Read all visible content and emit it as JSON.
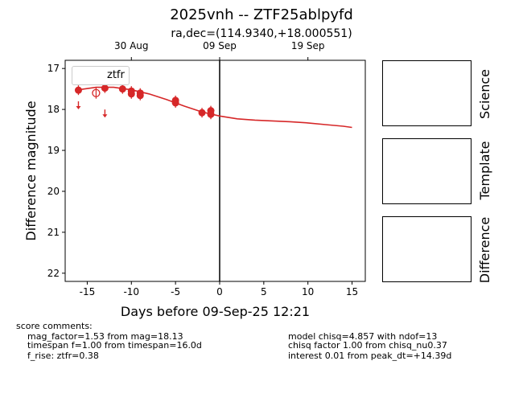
{
  "title": "2025vnh -- ZTF25ablpyfd",
  "subtitle": "ra,dec=(114.9340,+18.000551)",
  "chart_data": {
    "type": "scatter",
    "xlabel": "Days before 09-Sep-25 12:21",
    "ylabel": "Difference magnitude",
    "xlim": [
      -17.5,
      16.5
    ],
    "ylim": [
      22.2,
      16.8
    ],
    "x_ticks": [
      -15,
      -10,
      -5,
      0,
      5,
      10,
      15
    ],
    "y_ticks": [
      17,
      18,
      19,
      20,
      21,
      22
    ],
    "top_axis_ticks": [
      {
        "label": "30 Aug",
        "x": -10
      },
      {
        "label": "09 Sep",
        "x": 0
      },
      {
        "label": "19 Sep",
        "x": 10
      }
    ],
    "vertical_line_x": 0,
    "legend": {
      "position": "top-left",
      "entries": [
        "ztfr"
      ]
    },
    "series": [
      {
        "name": "ztfr",
        "color": "#d62728",
        "detections": [
          {
            "x": -16.0,
            "y": 17.53
          },
          {
            "x": -13.0,
            "y": 17.48
          },
          {
            "x": -11.0,
            "y": 17.5
          },
          {
            "x": -10.0,
            "y": 17.55
          },
          {
            "x": -10.0,
            "y": 17.62
          },
          {
            "x": -9.0,
            "y": 17.6
          },
          {
            "x": -9.0,
            "y": 17.66
          },
          {
            "x": -5.0,
            "y": 17.78
          },
          {
            "x": -5.0,
            "y": 17.84
          },
          {
            "x": -2.0,
            "y": 18.08
          },
          {
            "x": -1.0,
            "y": 18.03
          },
          {
            "x": -1.0,
            "y": 18.12
          }
        ],
        "upper_limits": [
          {
            "x": -16.0,
            "y": 17.9
          },
          {
            "x": -13.0,
            "y": 18.1
          }
        ],
        "open_points": [
          {
            "x": -14.0,
            "y": 17.6
          }
        ],
        "model_curve": [
          {
            "x": -16.0,
            "y": 17.52
          },
          {
            "x": -14.0,
            "y": 17.46
          },
          {
            "x": -12.0,
            "y": 17.46
          },
          {
            "x": -10.0,
            "y": 17.52
          },
          {
            "x": -8.0,
            "y": 17.62
          },
          {
            "x": -6.0,
            "y": 17.76
          },
          {
            "x": -4.0,
            "y": 17.92
          },
          {
            "x": -2.0,
            "y": 18.06
          },
          {
            "x": 0.0,
            "y": 18.16
          },
          {
            "x": 2.0,
            "y": 18.23
          },
          {
            "x": 4.0,
            "y": 18.26
          },
          {
            "x": 6.0,
            "y": 18.28
          },
          {
            "x": 8.0,
            "y": 18.3
          },
          {
            "x": 10.0,
            "y": 18.33
          },
          {
            "x": 12.0,
            "y": 18.37
          },
          {
            "x": 14.0,
            "y": 18.41
          },
          {
            "x": 15.0,
            "y": 18.44
          }
        ]
      }
    ]
  },
  "panels": {
    "science_label": "Science",
    "template_label": "Template",
    "difference_label": "Difference"
  },
  "comments": {
    "header": "score comments:",
    "left": [
      "mag_factor=1.53 from mag=18.13",
      "timespan f=1.00 from timespan=16.0d",
      "f_rise: ztfr=0.38"
    ],
    "right": [
      "model chisq=4.857 with ndof=13",
      "chisq factor 1.00 from chisq_nu0.37",
      "interest 0.01 from peak_dt=+14.39d"
    ]
  }
}
